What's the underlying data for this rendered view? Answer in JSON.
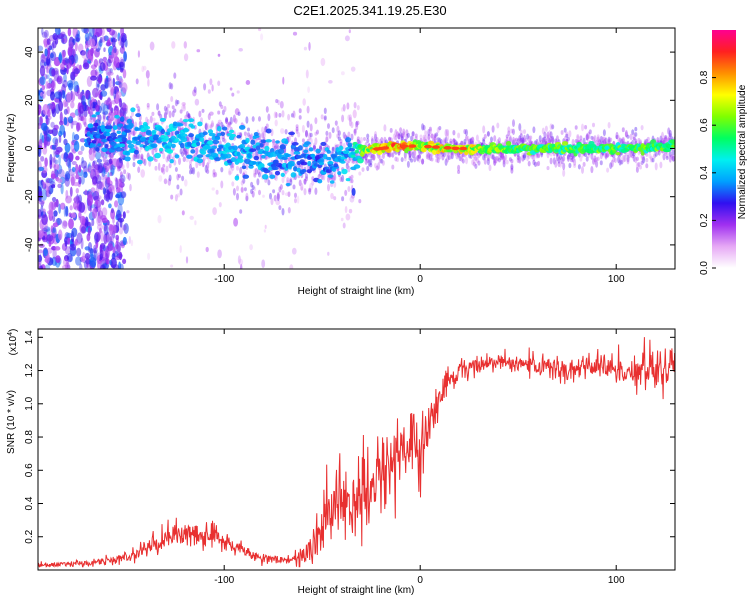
{
  "figure_title": "C2E1.2025.341.19.25.E30",
  "chart_data": [
    {
      "type": "heatmap",
      "title": "",
      "xlabel": "Height of straight line (km)",
      "ylabel": "Frequency (Hz)",
      "xlim": [
        -195,
        130
      ],
      "ylim": [
        -50,
        50
      ],
      "x_ticks": [
        -100,
        0,
        100
      ],
      "x_tick_labels": [
        "-100",
        "0",
        "100"
      ],
      "y_ticks": [
        -40,
        -20,
        0,
        20,
        40
      ],
      "y_tick_labels": [
        "-40",
        "-20",
        "0",
        "20",
        "40"
      ],
      "colorbar": {
        "label": "Normalized spectral amplitude",
        "range": [
          0,
          1
        ],
        "ticks": [
          0.0,
          0.2,
          0.4,
          0.6,
          0.8
        ],
        "tick_labels": [
          "0.0",
          "0.2",
          "0.4",
          "0.6",
          "0.8"
        ],
        "colormap": [
          "#ffffff",
          "#e6a8f5",
          "#a030f0",
          "#3010f0",
          "#00a0ff",
          "#00f0f0",
          "#00ff60",
          "#80ff00",
          "#ffff00",
          "#ff9000",
          "#ff2020",
          "#ff0090"
        ]
      },
      "ridge": {
        "x": [
          -165,
          -150,
          -130,
          -110,
          -90,
          -70,
          -55,
          -45,
          -35,
          -30,
          -20,
          -10,
          0,
          20,
          50,
          80,
          110,
          130
        ],
        "freq": [
          6,
          5,
          4,
          2,
          -1,
          -3,
          -5,
          -6,
          -3,
          -1,
          0,
          1,
          1,
          0,
          0,
          0,
          0,
          1
        ],
        "amplitude": [
          0.35,
          0.4,
          0.42,
          0.42,
          0.4,
          0.38,
          0.35,
          0.38,
          0.42,
          0.6,
          0.85,
          0.85,
          0.7,
          0.75,
          0.6,
          0.6,
          0.6,
          0.6
        ]
      }
    },
    {
      "type": "line",
      "title": "",
      "xlabel": "Height of straight line (km)",
      "ylabel": "SNR (10 * v/v)",
      "y_scale_label": "(x10",
      "y_scale_exponent": "4",
      "xlim": [
        -195,
        130
      ],
      "ylim": [
        0,
        14500
      ],
      "x_ticks": [
        -100,
        0,
        100
      ],
      "x_tick_labels": [
        "-100",
        "0",
        "100"
      ],
      "y_ticks": [
        2000,
        4000,
        6000,
        8000,
        10000,
        12000,
        14000
      ],
      "y_tick_labels": [
        "0.2",
        "0.4",
        "0.6",
        "0.8",
        "1.0",
        "1.2",
        "1.4"
      ],
      "series": [
        {
          "name": "SNR",
          "color": "#e83030",
          "x": [
            -195,
            -170,
            -150,
            -135,
            -125,
            -115,
            -105,
            -95,
            -80,
            -65,
            -55,
            -48,
            -42,
            -35,
            -28,
            -20,
            -12,
            -5,
            0,
            5,
            12,
            20,
            30,
            45,
            60,
            75,
            90,
            105,
            120,
            130
          ],
          "mean": [
            300,
            400,
            700,
            1600,
            2200,
            2000,
            2100,
            1400,
            700,
            600,
            1200,
            3000,
            4500,
            4000,
            4200,
            6000,
            7000,
            7500,
            7000,
            9000,
            11000,
            12000,
            12400,
            12500,
            12300,
            12000,
            12200,
            12000,
            12100,
            12100
          ],
          "noise": [
            150,
            200,
            300,
            600,
            800,
            700,
            800,
            500,
            250,
            250,
            1200,
            1800,
            2500,
            2500,
            2500,
            2500,
            2000,
            2000,
            2000,
            1500,
            800,
            600,
            500,
            500,
            600,
            800,
            900,
            1000,
            1100,
            1200
          ]
        }
      ]
    }
  ]
}
